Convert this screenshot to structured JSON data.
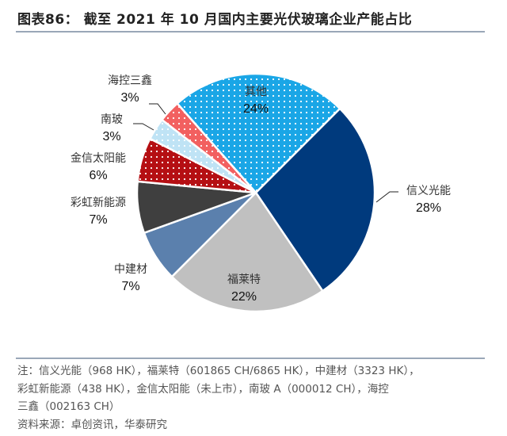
{
  "title": "图表86：  截至 2021 年 10 月国内主要光伏玻璃企业产能占比",
  "chart_data": {
    "type": "pie",
    "title": "截至 2021 年 10 月国内主要光伏玻璃企业产能占比",
    "start_angle_deg": 45,
    "direction": "clockwise",
    "categories": [
      "信义光能",
      "福莱特",
      "中建材",
      "彩虹新能源",
      "金信太阳能",
      "南玻",
      "海控三鑫",
      "其他"
    ],
    "values": [
      28,
      22,
      7,
      7,
      6,
      3,
      3,
      24
    ],
    "unit": "%",
    "colors": [
      "#003a7d",
      "#c0c0c0",
      "#5b80ad",
      "#3f3f3f",
      "#b50f13",
      "#bfe3f5",
      "#f26060",
      "#1aa6e6"
    ],
    "patterns": [
      "solid",
      "solid",
      "solid",
      "solid",
      "dots",
      "dots",
      "dots",
      "dots"
    ],
    "labels": [
      {
        "name": "信义光能",
        "pct": "28%"
      },
      {
        "name": "福莱特",
        "pct": "22%"
      },
      {
        "name": "中建材",
        "pct": "7%"
      },
      {
        "name": "彩虹新能源",
        "pct": "7%"
      },
      {
        "name": "金信太阳能",
        "pct": "6%"
      },
      {
        "name": "南玻",
        "pct": "3%"
      },
      {
        "name": "海控三鑫",
        "pct": "3%"
      },
      {
        "name": "其他",
        "pct": "24%"
      }
    ]
  },
  "notes": {
    "line1": "注：信义光能（968 HK），福莱特（601865 CH/6865 HK），中建材（3323 HK），",
    "line2": "彩虹新能源（438 HK），金信太阳能（未上市），南玻 A（000012 CH），海控",
    "line3": "三鑫（002163 CH）",
    "source": "资料来源：卓创资讯，华泰研究"
  }
}
